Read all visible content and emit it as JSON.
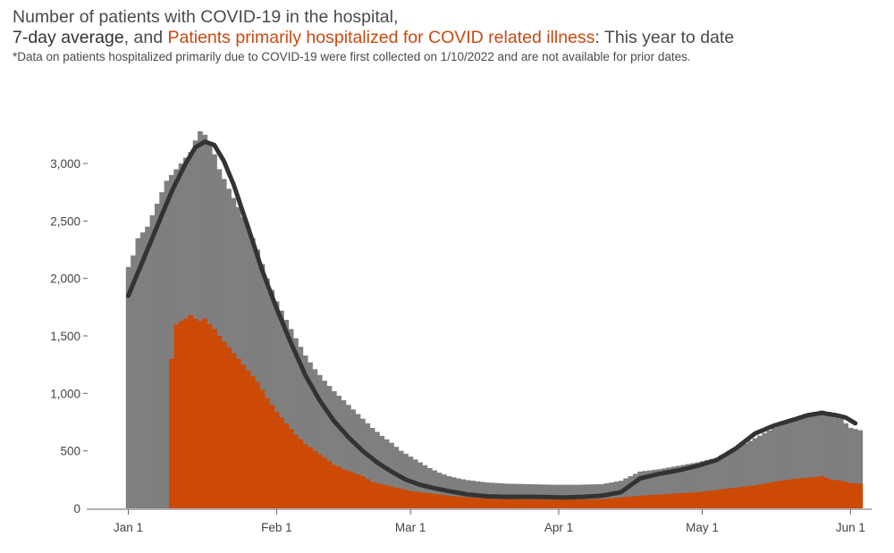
{
  "header": {
    "title_line1": "Number of patients with COVID-19 in the hospital,",
    "avg_label": "7-day average",
    "sep1": ", and ",
    "primary_label": "Patients primarily hospitalized for COVID related illness",
    "period": ": This year to date",
    "note": "*Data on patients hospitalized primarily due to COVID-19 were first collected on 1/10/2022 and are not available for prior dates."
  },
  "colors": {
    "total": "#7f7f7f",
    "primary": "#cc4a06",
    "average": "#333333",
    "axis": "#666666"
  },
  "chart_data": {
    "type": "bar",
    "title": "Number of patients with COVID-19 in the hospital, 7-day average, and Patients primarily hospitalized for COVID related illness: This year to date",
    "xlabel": "",
    "ylabel": "",
    "ylim": [
      0,
      3200
    ],
    "yticks": [
      {
        "value": 0,
        "label": "0"
      },
      {
        "value": 500,
        "label": "500"
      },
      {
        "value": 1000,
        "label": "1,000"
      },
      {
        "value": 1500,
        "label": "1,500"
      },
      {
        "value": 2000,
        "label": "2,000"
      },
      {
        "value": 2500,
        "label": "2,500"
      },
      {
        "value": 3000,
        "label": "3,000"
      }
    ],
    "xticks": [
      {
        "day": 1,
        "label": "Jan 1"
      },
      {
        "day": 32,
        "label": "Feb 1"
      },
      {
        "day": 60,
        "label": "Mar 1"
      },
      {
        "day": 91,
        "label": "Apr 1"
      },
      {
        "day": 121,
        "label": "May 1"
      },
      {
        "day": 152,
        "label": "Jun 1"
      }
    ],
    "x_start": "2022-01-01",
    "primary_start_day": 10,
    "series": [
      {
        "name": "Patients with COVID-19 in the hospital",
        "kind": "bar",
        "key": "total",
        "knots": [
          [
            1,
            2100
          ],
          [
            2,
            2200
          ],
          [
            3,
            2350
          ],
          [
            4,
            2400
          ],
          [
            5,
            2450
          ],
          [
            6,
            2550
          ],
          [
            7,
            2650
          ],
          [
            8,
            2750
          ],
          [
            9,
            2850
          ],
          [
            10,
            2900
          ],
          [
            11,
            2950
          ],
          [
            12,
            3000
          ],
          [
            13,
            3050
          ],
          [
            14,
            3100
          ],
          [
            15,
            3200
          ],
          [
            16,
            3280
          ],
          [
            17,
            3250
          ],
          [
            18,
            3180
          ],
          [
            19,
            3080
          ],
          [
            20,
            2950
          ],
          [
            22,
            2780
          ],
          [
            24,
            2620
          ],
          [
            26,
            2450
          ],
          [
            28,
            2250
          ],
          [
            30,
            2000
          ],
          [
            32,
            1800
          ],
          [
            34,
            1640
          ],
          [
            36,
            1480
          ],
          [
            38,
            1330
          ],
          [
            40,
            1210
          ],
          [
            42,
            1110
          ],
          [
            44,
            1020
          ],
          [
            46,
            940
          ],
          [
            48,
            860
          ],
          [
            50,
            780
          ],
          [
            52,
            700
          ],
          [
            54,
            630
          ],
          [
            56,
            570
          ],
          [
            58,
            500
          ],
          [
            60,
            450
          ],
          [
            62,
            400
          ],
          [
            64,
            350
          ],
          [
            66,
            310
          ],
          [
            68,
            280
          ],
          [
            70,
            260
          ],
          [
            72,
            245
          ],
          [
            76,
            225
          ],
          [
            80,
            215
          ],
          [
            85,
            210
          ],
          [
            90,
            205
          ],
          [
            95,
            205
          ],
          [
            100,
            210
          ],
          [
            104,
            240
          ],
          [
            108,
            320
          ],
          [
            112,
            340
          ],
          [
            116,
            370
          ],
          [
            120,
            400
          ],
          [
            124,
            440
          ],
          [
            128,
            520
          ],
          [
            132,
            610
          ],
          [
            136,
            700
          ],
          [
            140,
            760
          ],
          [
            144,
            820
          ],
          [
            146,
            850
          ],
          [
            148,
            800
          ],
          [
            150,
            780
          ],
          [
            152,
            700
          ],
          [
            154,
            680
          ]
        ]
      },
      {
        "name": "Patients primarily hospitalized for COVID related illness",
        "kind": "bar",
        "key": "primary",
        "knots": [
          [
            10,
            1300
          ],
          [
            11,
            1600
          ],
          [
            12,
            1630
          ],
          [
            13,
            1650
          ],
          [
            14,
            1680
          ],
          [
            15,
            1650
          ],
          [
            16,
            1630
          ],
          [
            17,
            1650
          ],
          [
            18,
            1600
          ],
          [
            19,
            1560
          ],
          [
            20,
            1500
          ],
          [
            22,
            1400
          ],
          [
            24,
            1300
          ],
          [
            26,
            1200
          ],
          [
            28,
            1100
          ],
          [
            30,
            960
          ],
          [
            32,
            840
          ],
          [
            34,
            740
          ],
          [
            36,
            640
          ],
          [
            38,
            560
          ],
          [
            40,
            500
          ],
          [
            42,
            440
          ],
          [
            44,
            380
          ],
          [
            46,
            340
          ],
          [
            48,
            310
          ],
          [
            50,
            280
          ],
          [
            52,
            230
          ],
          [
            54,
            210
          ],
          [
            56,
            190
          ],
          [
            58,
            170
          ],
          [
            60,
            150
          ],
          [
            64,
            130
          ],
          [
            68,
            110
          ],
          [
            72,
            95
          ],
          [
            76,
            85
          ],
          [
            80,
            80
          ],
          [
            90,
            75
          ],
          [
            100,
            80
          ],
          [
            104,
            95
          ],
          [
            108,
            110
          ],
          [
            112,
            120
          ],
          [
            116,
            130
          ],
          [
            120,
            140
          ],
          [
            124,
            160
          ],
          [
            128,
            180
          ],
          [
            132,
            200
          ],
          [
            136,
            230
          ],
          [
            140,
            255
          ],
          [
            144,
            270
          ],
          [
            146,
            280
          ],
          [
            148,
            250
          ],
          [
            150,
            240
          ],
          [
            152,
            220
          ],
          [
            154,
            215
          ]
        ]
      },
      {
        "name": "7-day average",
        "kind": "line",
        "key": "average",
        "knots": [
          [
            1,
            1850
          ],
          [
            4,
            2150
          ],
          [
            7,
            2450
          ],
          [
            10,
            2750
          ],
          [
            13,
            3000
          ],
          [
            15,
            3140
          ],
          [
            17,
            3190
          ],
          [
            19,
            3160
          ],
          [
            21,
            3020
          ],
          [
            23,
            2820
          ],
          [
            26,
            2450
          ],
          [
            29,
            2070
          ],
          [
            32,
            1740
          ],
          [
            35,
            1440
          ],
          [
            38,
            1160
          ],
          [
            41,
            940
          ],
          [
            44,
            760
          ],
          [
            47,
            620
          ],
          [
            50,
            500
          ],
          [
            53,
            400
          ],
          [
            56,
            320
          ],
          [
            59,
            250
          ],
          [
            62,
            205
          ],
          [
            65,
            175
          ],
          [
            68,
            150
          ],
          [
            72,
            120
          ],
          [
            76,
            105
          ],
          [
            80,
            100
          ],
          [
            86,
            100
          ],
          [
            92,
            95
          ],
          [
            96,
            100
          ],
          [
            100,
            110
          ],
          [
            104,
            140
          ],
          [
            108,
            260
          ],
          [
            112,
            300
          ],
          [
            116,
            330
          ],
          [
            120,
            370
          ],
          [
            124,
            420
          ],
          [
            128,
            520
          ],
          [
            132,
            650
          ],
          [
            136,
            720
          ],
          [
            140,
            770
          ],
          [
            143,
            810
          ],
          [
            146,
            830
          ],
          [
            149,
            810
          ],
          [
            151,
            790
          ],
          [
            153,
            740
          ]
        ]
      }
    ]
  }
}
